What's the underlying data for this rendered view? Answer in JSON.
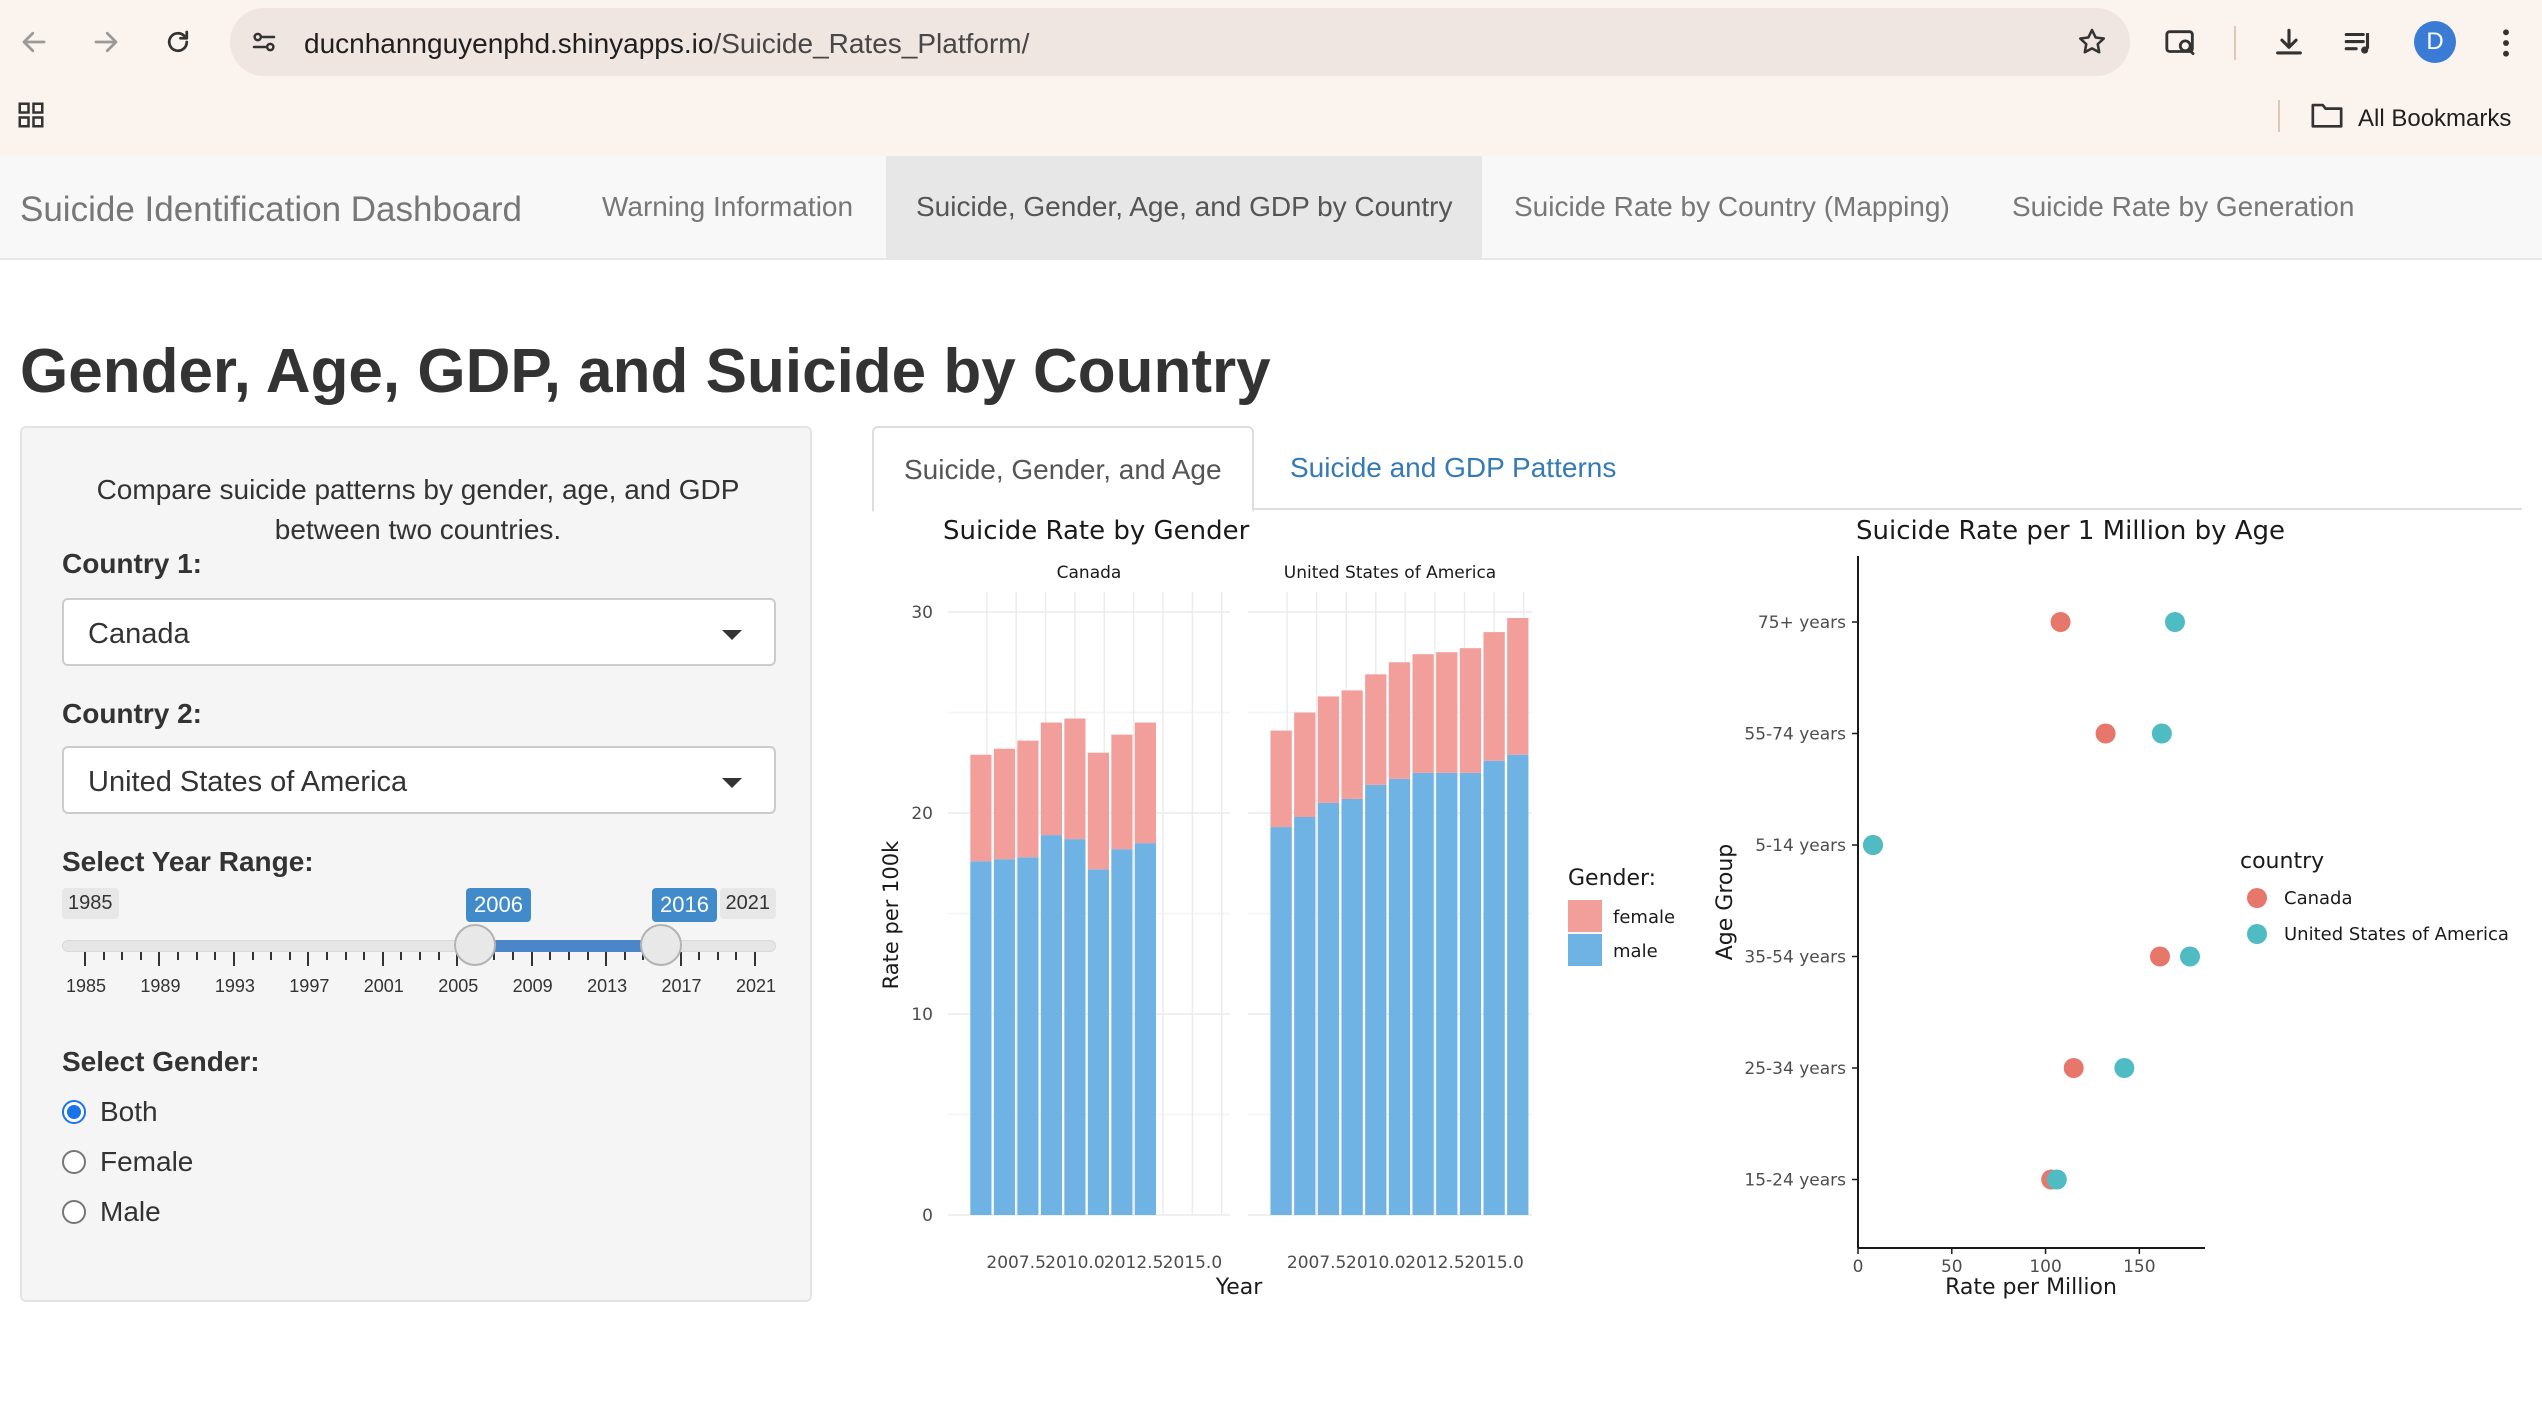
{
  "browser": {
    "url_host": "ducnhannguyenphd.shinyapps.io",
    "url_path": "/Suicide_Rates_Platform/",
    "avatar_letter": "D",
    "bookmarks_label": "All Bookmarks"
  },
  "navbar": {
    "brand": "Suicide Identification Dashboard",
    "tabs": [
      {
        "label": "Warning Information"
      },
      {
        "label": "Suicide, Gender, Age, and GDP by Country"
      },
      {
        "label": "Suicide Rate by Country (Mapping)"
      },
      {
        "label": "Suicide Rate by Generation"
      }
    ],
    "active_index": 1
  },
  "page": {
    "title": "Gender, Age, GDP, and Suicide by Country"
  },
  "sidebar": {
    "intro": "Compare suicide patterns by gender, age, and GDP between two countries.",
    "country1_label": "Country 1:",
    "country1_value": "Canada",
    "country2_label": "Country 2:",
    "country2_value": "United States of America",
    "year_label": "Select Year Range:",
    "year_min": "1985",
    "year_max": "2021",
    "year_from": "2006",
    "year_to": "2016",
    "year_ticks": [
      "1985",
      "1989",
      "1993",
      "1997",
      "2001",
      "2005",
      "2009",
      "2013",
      "2017",
      "2021"
    ],
    "gender_label": "Select Gender:",
    "gender_options": [
      {
        "label": "Both",
        "checked": true
      },
      {
        "label": "Female",
        "checked": false
      },
      {
        "label": "Male",
        "checked": false
      }
    ]
  },
  "tabs": {
    "items": [
      {
        "label": "Suicide, Gender, and Age"
      },
      {
        "label": "Suicide and GDP Patterns"
      }
    ],
    "active_index": 0
  },
  "colors": {
    "female": "#f29e9b",
    "male": "#6fb2e4",
    "canada": "#e7776b",
    "usa": "#4fbcc4"
  },
  "chart_data": [
    {
      "type": "bar",
      "title": "Suicide Rate by Gender",
      "xlabel": "Year",
      "ylabel": "Rate per 100k",
      "ylim": [
        0,
        30
      ],
      "yticks": [
        "0",
        "10",
        "20",
        "30"
      ],
      "xticks": [
        "2007.5",
        "2010.0",
        "2012.5",
        "2015.0"
      ],
      "legend_title": "Gender:",
      "legend": [
        "female",
        "male"
      ],
      "facets": [
        {
          "name": "Canada",
          "years": [
            2006,
            2007,
            2008,
            2009,
            2010,
            2011,
            2012,
            2013
          ],
          "male": [
            17.6,
            17.7,
            17.8,
            18.9,
            18.7,
            17.2,
            18.2,
            18.5
          ],
          "female": [
            5.3,
            5.5,
            5.8,
            5.6,
            6.0,
            5.8,
            5.7,
            6.0
          ]
        },
        {
          "name": "United States of America",
          "years": [
            2006,
            2007,
            2008,
            2009,
            2010,
            2011,
            2012,
            2013,
            2014,
            2015,
            2016
          ],
          "male": [
            19.3,
            19.8,
            20.5,
            20.7,
            21.4,
            21.7,
            22.0,
            22.0,
            22.0,
            22.6,
            22.9
          ],
          "female": [
            4.8,
            5.2,
            5.3,
            5.4,
            5.5,
            5.8,
            5.9,
            6.0,
            6.2,
            6.4,
            6.8
          ]
        }
      ]
    },
    {
      "type": "scatter",
      "title": "Suicide Rate per 1 Million by Age",
      "xlabel": "Rate per Million",
      "ylabel": "Age Group",
      "xlim": [
        0,
        185
      ],
      "xticks": [
        "0",
        "50",
        "100",
        "150"
      ],
      "categories": [
        "75+ years",
        "55-74 years",
        "5-14 years",
        "35-54 years",
        "25-34 years",
        "15-24 years"
      ],
      "legend_title": "country",
      "series": [
        {
          "name": "Canada",
          "values": [
            108,
            132,
            8,
            161,
            115,
            103
          ]
        },
        {
          "name": "United States of America",
          "values": [
            169,
            162,
            8,
            177,
            142,
            106
          ]
        }
      ]
    }
  ]
}
